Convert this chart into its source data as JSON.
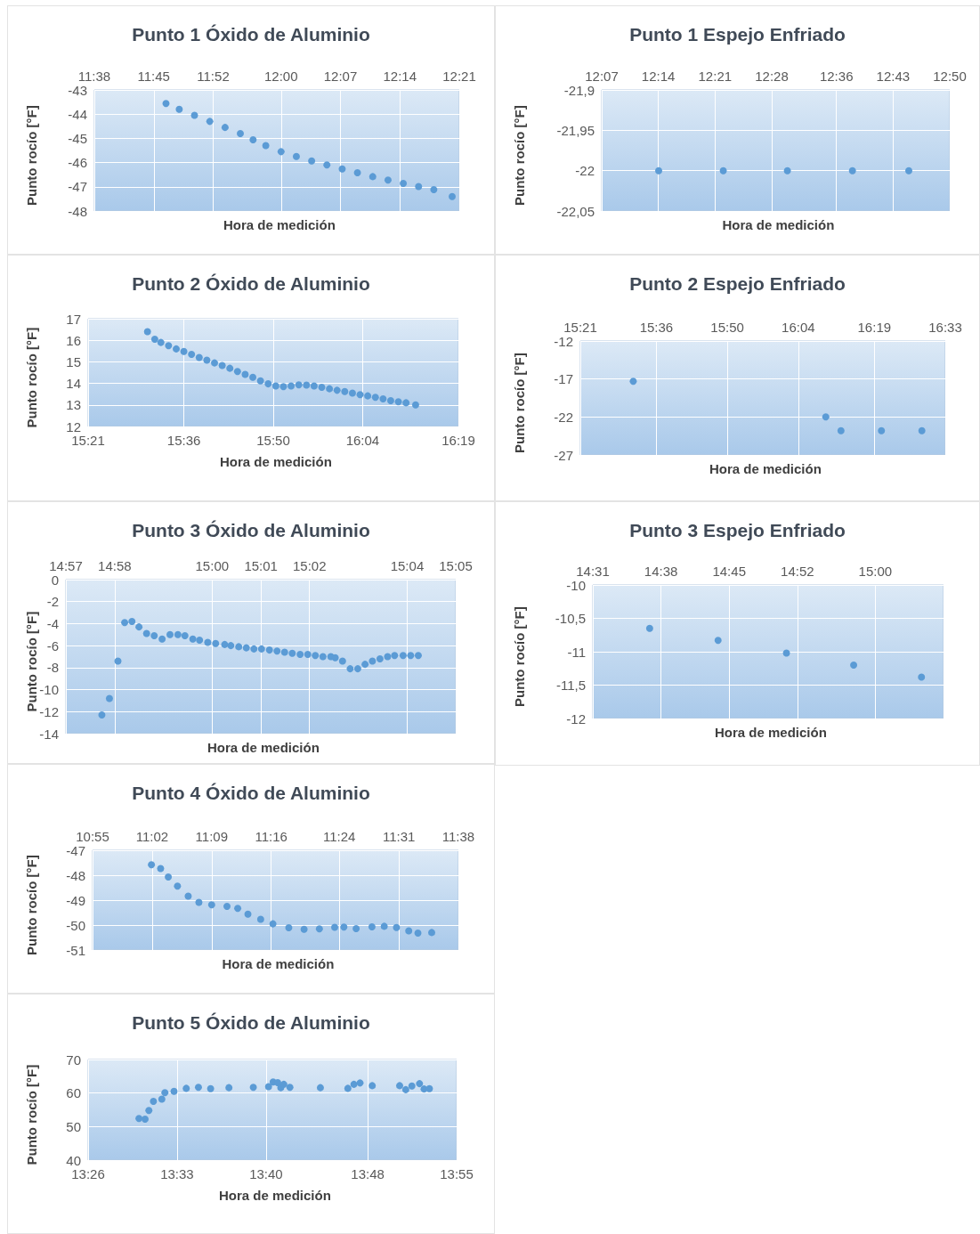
{
  "chart_data": [
    {
      "type": "scatter",
      "title": "Punto 1 Óxido de Aluminio",
      "xlabel": "Hora de medición",
      "ylabel": "Punto rocío [°F]",
      "color": "#5b9bd5",
      "marker": "circle",
      "grid": true,
      "x": [
        11.774,
        11.8,
        11.83,
        11.86,
        11.89,
        11.92,
        11.945,
        11.97,
        12.0,
        12.03,
        12.06,
        12.09,
        12.12,
        12.15,
        12.18,
        12.21,
        12.24,
        12.27,
        12.3,
        12.336
      ],
      "values": [
        -43.56,
        -43.8,
        -44.05,
        -44.3,
        -44.55,
        -44.8,
        -45.06,
        -45.3,
        -45.55,
        -45.75,
        -45.93,
        -46.1,
        -46.26,
        -46.42,
        -46.58,
        -46.72,
        -46.86,
        -46.99,
        -47.12,
        -47.4
      ],
      "xlim": [
        11.6333,
        12.35
      ],
      "xticks": [
        {
          "value": 11.6333,
          "label": "11:38"
        },
        {
          "value": 11.75,
          "label": "11:45"
        },
        {
          "value": 11.8667,
          "label": "11:52"
        },
        {
          "value": 12.0,
          "label": "12:00"
        },
        {
          "value": 12.1167,
          "label": "12:07"
        },
        {
          "value": 12.2333,
          "label": "12:14"
        },
        {
          "value": 12.35,
          "label": "12:21"
        }
      ],
      "ylim": [
        -48,
        -43
      ],
      "yticks": [
        -48,
        -47,
        -46,
        -45,
        -44,
        -43
      ]
    },
    {
      "type": "scatter",
      "title": "Punto 1 Espejo Enfriado",
      "xlabel": "Hora de medición",
      "ylabel": "Punto rocío [°F]",
      "color": "#5b9bd5",
      "marker": "circle",
      "grid": true,
      "x": [
        12.234,
        12.367,
        12.499,
        12.633,
        12.749
      ],
      "values": [
        -22,
        -22,
        -22,
        -22,
        -22
      ],
      "xlim": [
        12.1167,
        12.8333
      ],
      "xticks": [
        {
          "value": 12.1167,
          "label": "12:07"
        },
        {
          "value": 12.2333,
          "label": "12:14"
        },
        {
          "value": 12.35,
          "label": "12:21"
        },
        {
          "value": 12.4667,
          "label": "12:28"
        },
        {
          "value": 12.6,
          "label": "12:36"
        },
        {
          "value": 12.7167,
          "label": "12:43"
        },
        {
          "value": 12.8333,
          "label": "12:50"
        }
      ],
      "ylim": [
        -22.05,
        -21.9
      ],
      "yticks": [
        {
          "value": -22.05,
          "label": "-22,05"
        },
        -22,
        {
          "value": -21.95,
          "label": "-21,95"
        },
        {
          "value": -21.9,
          "label": "-21,9"
        }
      ]
    },
    {
      "type": "scatter",
      "title": "Punto 2 Óxido de Aluminio",
      "xlabel": "Hora de medición",
      "ylabel": "Punto rocío [°F]",
      "color": "#5b9bd5",
      "marker": "circle",
      "grid": true,
      "x": [
        15.505,
        15.524,
        15.54,
        15.56,
        15.58,
        15.6,
        15.62,
        15.64,
        15.66,
        15.68,
        15.7,
        15.72,
        15.74,
        15.76,
        15.78,
        15.8,
        15.82,
        15.84,
        15.86,
        15.88,
        15.9,
        15.92,
        15.94,
        15.96,
        15.98,
        16.0,
        16.02,
        16.04,
        16.06,
        16.08,
        16.1,
        16.12,
        16.14,
        16.16,
        16.18,
        16.205
      ],
      "values": [
        16.4,
        16.05,
        15.9,
        15.75,
        15.6,
        15.48,
        15.35,
        15.2,
        15.08,
        14.95,
        14.83,
        14.7,
        14.55,
        14.42,
        14.28,
        14.12,
        13.98,
        13.88,
        13.85,
        13.88,
        13.93,
        13.92,
        13.88,
        13.82,
        13.75,
        13.68,
        13.62,
        13.55,
        13.48,
        13.42,
        13.35,
        13.28,
        13.2,
        13.15,
        13.1,
        13.0
      ],
      "xlim": [
        15.35,
        16.3167
      ],
      "xticks": [
        {
          "value": 15.35,
          "label": "15:21"
        },
        {
          "value": 15.6,
          "label": "15:36"
        },
        {
          "value": 15.8333,
          "label": "15:50"
        },
        {
          "value": 16.0667,
          "label": "16:04"
        },
        {
          "value": 16.3167,
          "label": "16:19"
        }
      ],
      "ylim": [
        12,
        17
      ],
      "yticks": [
        12,
        13,
        14,
        15,
        16,
        17
      ]
    },
    {
      "type": "scatter",
      "title": "Punto 2 Espejo Enfriado",
      "xlabel": "Hora de medición",
      "ylabel": "Punto rocío [°F]",
      "color": "#5b9bd5",
      "marker": "circle",
      "grid": true,
      "x": [
        15.524,
        16.157,
        16.207,
        16.34,
        16.473
      ],
      "values": [
        -17.3,
        -22,
        -23.8,
        -23.8,
        -23.8
      ],
      "xlim": [
        15.35,
        16.55
      ],
      "xticks": [
        {
          "value": 15.35,
          "label": "15:21"
        },
        {
          "value": 15.6,
          "label": "15:36"
        },
        {
          "value": 15.8333,
          "label": "15:50"
        },
        {
          "value": 16.0667,
          "label": "16:04"
        },
        {
          "value": 16.3167,
          "label": "16:19"
        },
        {
          "value": 16.55,
          "label": "16:33"
        }
      ],
      "ylim": [
        -27,
        -12
      ],
      "yticks": [
        -27,
        -22,
        -17,
        -12
      ]
    },
    {
      "type": "scatter",
      "title": "Punto 3 Óxido de Aluminio",
      "xlabel": "Hora de medición",
      "ylabel": "Punto rocío [°F]",
      "color": "#5b9bd5",
      "marker": "circle",
      "grid": true,
      "x": [
        14.9623,
        14.9649,
        14.9678,
        14.9701,
        14.9726,
        14.975,
        14.9776,
        14.9802,
        14.9829,
        14.9856,
        14.9883,
        14.9907,
        14.9934,
        14.9957,
        14.9985,
        15.0012,
        15.0043,
        15.0064,
        15.0091,
        15.0117,
        15.0143,
        15.0169,
        15.0196,
        15.0222,
        15.0248,
        15.0274,
        15.0301,
        15.0327,
        15.0353,
        15.0379,
        15.0406,
        15.0421,
        15.0446,
        15.0472,
        15.0498,
        15.0523,
        15.0548,
        15.0574,
        15.06,
        15.0624,
        15.0653,
        15.0679,
        15.0705
      ],
      "values": [
        -12.3,
        -10.8,
        -7.4,
        -3.9,
        -3.8,
        -4.3,
        -4.9,
        -5.1,
        -5.4,
        -5.0,
        -5.0,
        -5.1,
        -5.4,
        -5.5,
        -5.7,
        -5.8,
        -5.9,
        -6.0,
        -6.1,
        -6.2,
        -6.3,
        -6.3,
        -6.4,
        -6.5,
        -6.6,
        -6.7,
        -6.8,
        -6.8,
        -6.9,
        -7.0,
        -7.0,
        -7.1,
        -7.4,
        -8.1,
        -8.1,
        -7.7,
        -7.4,
        -7.2,
        -7.0,
        -6.9,
        -6.9,
        -6.9,
        -6.9
      ],
      "xlim": [
        14.95,
        15.0833
      ],
      "xticks": [
        {
          "value": 14.95,
          "label": "14:57"
        },
        {
          "value": 14.9667,
          "label": "14:58"
        },
        {
          "value": 15.0,
          "label": "15:00"
        },
        {
          "value": 15.0167,
          "label": "15:01"
        },
        {
          "value": 15.0333,
          "label": "15:02"
        },
        {
          "value": 15.0667,
          "label": "15:04"
        },
        {
          "value": 15.0833,
          "label": "15:05"
        }
      ],
      "ylim": [
        -14,
        0
      ],
      "yticks": [
        -14,
        -12,
        -10,
        -8,
        -6,
        -4,
        -2,
        0
      ]
    },
    {
      "type": "scatter",
      "title": "Punto 3 Espejo Enfriado",
      "xlabel": "Hora de medición",
      "ylabel": "Punto rocío [°F]",
      "color": "#5b9bd5",
      "marker": "circle",
      "grid": true,
      "x": [
        14.614,
        14.731,
        14.848,
        14.963,
        15.079
      ],
      "values": [
        -10.65,
        -10.83,
        -11.02,
        -11.2,
        -11.38
      ],
      "xlim": [
        14.5167,
        15.1167
      ],
      "xticks": [
        {
          "value": 14.5167,
          "label": "14:31"
        },
        {
          "value": 14.6333,
          "label": "14:38"
        },
        {
          "value": 14.75,
          "label": "14:45"
        },
        {
          "value": 14.8667,
          "label": "14:52"
        },
        {
          "value": 15.0,
          "label": "15:00"
        },
        {
          "value": 15.1167,
          "label": null
        }
      ],
      "ylim": [
        -12,
        -10
      ],
      "yticks": [
        -12,
        {
          "value": -11.5,
          "label": "-11,5"
        },
        -11,
        {
          "value": -10.5,
          "label": "-10,5"
        },
        -10
      ]
    },
    {
      "type": "scatter",
      "title": "Punto 4 Óxido de Aluminio",
      "xlabel": "Hora de medición",
      "ylabel": "Punto rocío [°F]",
      "color": "#5b9bd5",
      "marker": "circle",
      "grid": true,
      "x": [
        11.032,
        11.05,
        11.065,
        11.083,
        11.104,
        11.125,
        11.15,
        11.18,
        11.201,
        11.221,
        11.246,
        11.27,
        11.301,
        11.331,
        11.361,
        11.391,
        11.409,
        11.433,
        11.464,
        11.488,
        11.512,
        11.536,
        11.554,
        11.581
      ],
      "values": [
        -47.58,
        -47.73,
        -48.07,
        -48.44,
        -48.84,
        -49.09,
        -49.19,
        -49.25,
        -49.33,
        -49.56,
        -49.77,
        -49.95,
        -50.11,
        -50.17,
        -50.15,
        -50.09,
        -50.08,
        -50.14,
        -50.07,
        -50.05,
        -50.1,
        -50.23,
        -50.32,
        -50.3
      ],
      "xlim": [
        10.9167,
        11.6333
      ],
      "xticks": [
        {
          "value": 10.9167,
          "label": "10:55"
        },
        {
          "value": 11.0333,
          "label": "11:02"
        },
        {
          "value": 11.15,
          "label": "11:09"
        },
        {
          "value": 11.2667,
          "label": "11:16"
        },
        {
          "value": 11.4,
          "label": "11:24"
        },
        {
          "value": 11.5167,
          "label": "11:31"
        },
        {
          "value": 11.6333,
          "label": "11:38"
        }
      ],
      "ylim": [
        -51,
        -47
      ],
      "yticks": [
        -51,
        -50,
        -49,
        -48,
        -47
      ]
    },
    {
      "type": "scatter",
      "title": "Punto 5 Óxido de Aluminio",
      "xlabel": "Hora de medición",
      "ylabel": "Punto rocío [°F]",
      "color": "#5b9bd5",
      "marker": "circle",
      "grid": true,
      "x": [
        13.5,
        13.508,
        13.513,
        13.519,
        13.53,
        13.534,
        13.546,
        13.562,
        13.578,
        13.594,
        13.618,
        13.65,
        13.67,
        13.676,
        13.682,
        13.686,
        13.69,
        13.698,
        13.738,
        13.774,
        13.782,
        13.79,
        13.806,
        13.842,
        13.85,
        13.858,
        13.868,
        13.874,
        13.881
      ],
      "values": [
        52.4,
        52.2,
        54.8,
        57.5,
        58.2,
        60.1,
        60.5,
        61.4,
        61.7,
        61.3,
        61.6,
        61.7,
        61.9,
        63.3,
        63.1,
        61.6,
        62.6,
        61.7,
        61.6,
        61.4,
        62.6,
        63.0,
        62.2,
        62.2,
        61.0,
        62.1,
        62.8,
        61.2,
        61.3
      ],
      "xlim": [
        13.4333,
        13.9167
      ],
      "xticks": [
        {
          "value": 13.4333,
          "label": "13:26"
        },
        {
          "value": 13.55,
          "label": "13:33"
        },
        {
          "value": 13.6667,
          "label": "13:40"
        },
        {
          "value": 13.8,
          "label": "13:48"
        },
        {
          "value": 13.9167,
          "label": "13:55"
        }
      ],
      "ylim": [
        40,
        70
      ],
      "yticks": [
        40,
        50,
        60,
        70
      ]
    }
  ]
}
